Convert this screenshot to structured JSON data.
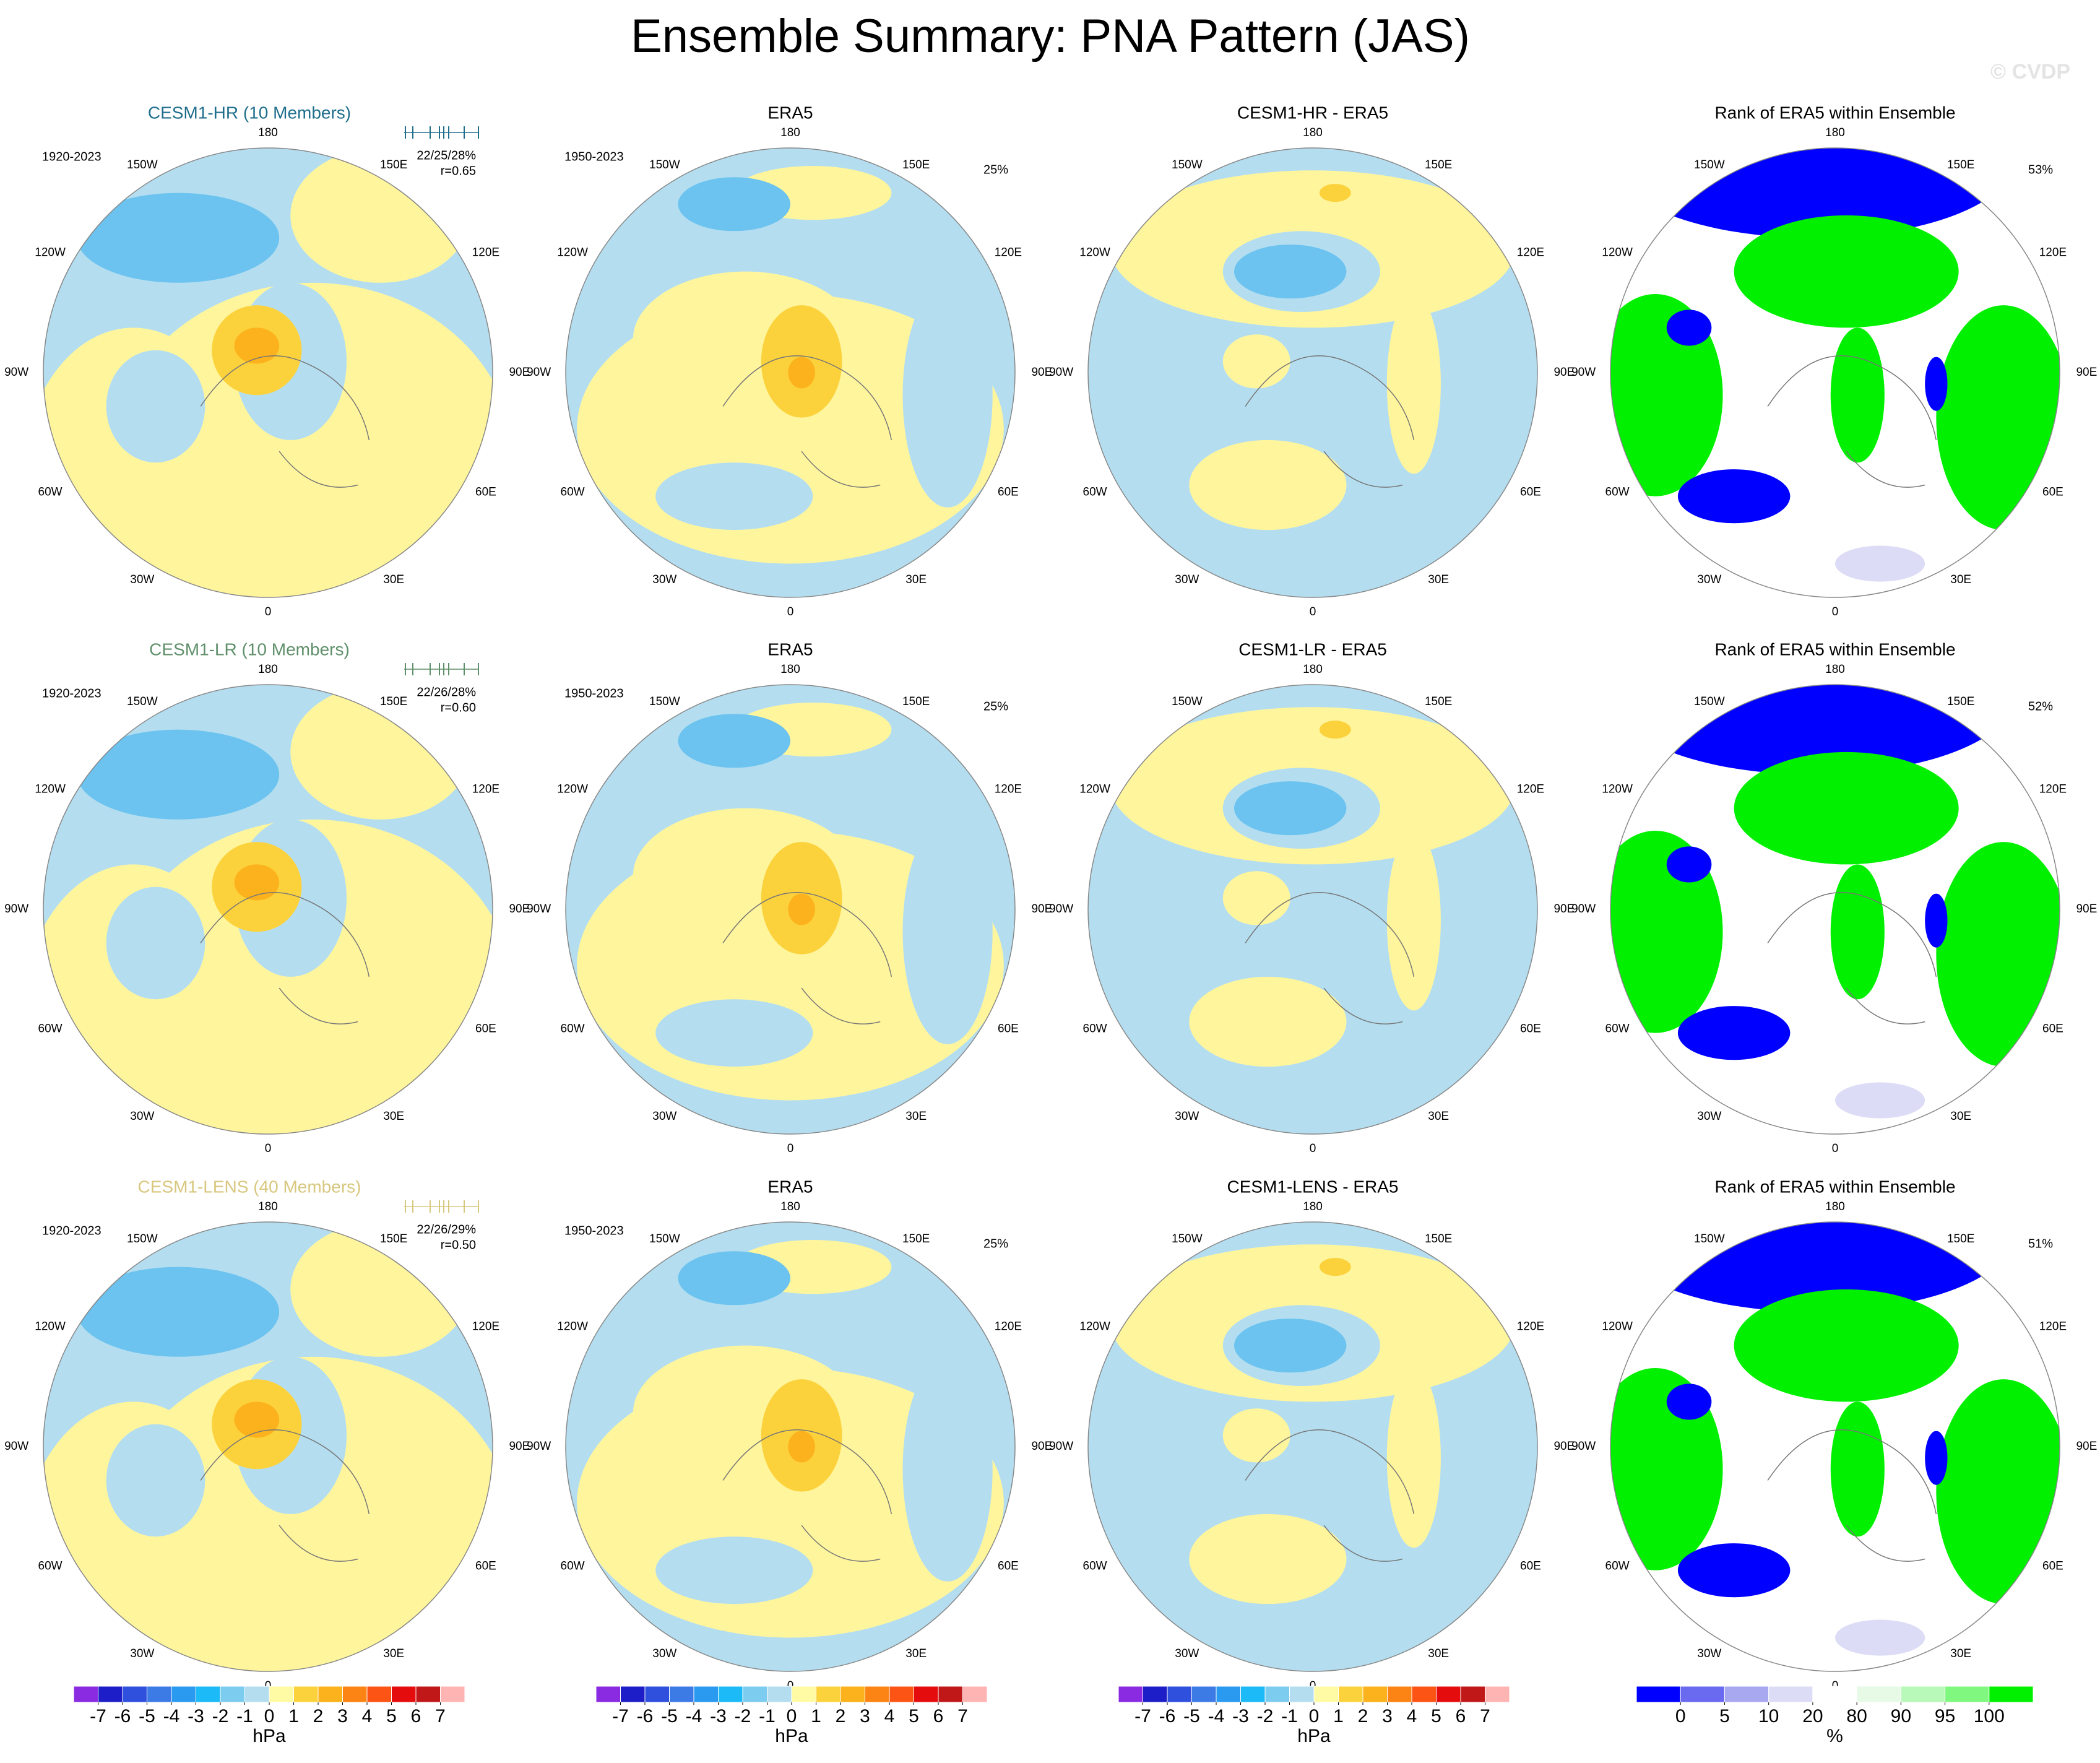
{
  "title": "Ensemble Summary: PNA Pattern (JAS)",
  "watermark": "© CVDP",
  "lon_labels": [
    "180",
    "150E",
    "120E",
    "90E",
    "60E",
    "30E",
    "0",
    "30W",
    "60W",
    "90W",
    "120W",
    "150W"
  ],
  "rows": [
    {
      "model": {
        "title": "CESM1-HR (10 Members)",
        "color": "#1f6e8c",
        "period": "1920-2023",
        "stats": "22/25/28%",
        "corr": "r=0.65"
      },
      "obs": {
        "title": "ERA5",
        "period": "1950-2023",
        "pct": "25%"
      },
      "diff": {
        "title": "CESM1-HR - ERA5"
      },
      "rank": {
        "title": "Rank of ERA5 within Ensemble",
        "pct": "53%"
      }
    },
    {
      "model": {
        "title": "CESM1-LR (10 Members)",
        "color": "#5f8f6a",
        "period": "1920-2023",
        "stats": "22/26/28%",
        "corr": "r=0.60"
      },
      "obs": {
        "title": "ERA5",
        "period": "1950-2023",
        "pct": "25%"
      },
      "diff": {
        "title": "CESM1-LR - ERA5"
      },
      "rank": {
        "title": "Rank of ERA5 within Ensemble",
        "pct": "52%"
      }
    },
    {
      "model": {
        "title": "CESM1-LENS (40 Members)",
        "color": "#d8c77e",
        "period": "1920-2023",
        "stats": "22/26/29%",
        "corr": "r=0.50"
      },
      "obs": {
        "title": "ERA5",
        "period": "1950-2023",
        "pct": "25%"
      },
      "diff": {
        "title": "CESM1-LENS - ERA5"
      },
      "rank": {
        "title": "Rank of ERA5 within Ensemble",
        "pct": "51%"
      }
    }
  ],
  "colorbars": {
    "hpa": {
      "labels": [
        -7,
        -6,
        -5,
        -4,
        -3,
        -2,
        -1,
        0,
        1,
        2,
        3,
        4,
        5,
        6,
        7
      ],
      "unit": "hPa",
      "colors": [
        "#8a2be2",
        "#1e1ec8",
        "#2e50dc",
        "#3c7ae6",
        "#2a9af0",
        "#1cbaf6",
        "#7cccf0",
        "#b4def0",
        "#fffba4",
        "#fcd23c",
        "#fcb21c",
        "#fc8414",
        "#fc5414",
        "#e40c0c",
        "#c01818",
        "#ffb4b4"
      ]
    },
    "rank": {
      "labels": [
        0,
        5,
        10,
        20,
        80,
        90,
        95,
        100
      ],
      "unit": "%",
      "colors": [
        "#0000ff",
        "#6a6af0",
        "#a8a8f0",
        "#dcdcf6",
        "#ffffff",
        "#e6fae6",
        "#b8f8b8",
        "#80f880",
        "#00f000"
      ]
    }
  }
}
